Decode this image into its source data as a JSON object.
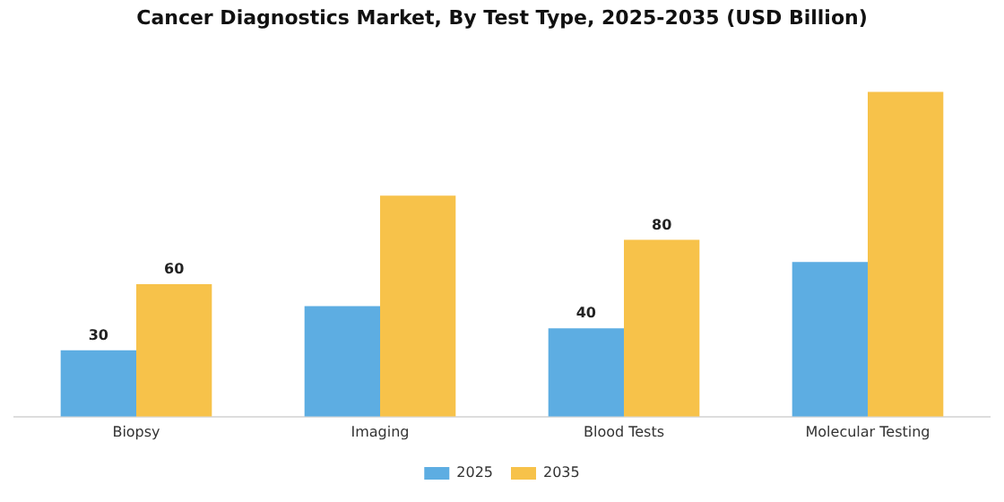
{
  "chart_data": {
    "type": "bar",
    "title": "Cancer Diagnostics Market, By Test Type, 2025-2035 (USD Billion)",
    "categories": [
      "Biopsy",
      "Imaging",
      "Blood Tests",
      "Molecular Testing"
    ],
    "series": [
      {
        "name": "2025",
        "color": "#5dade2",
        "values": [
          30,
          50,
          40,
          70
        ],
        "value_labels": [
          "30",
          null,
          "40",
          null
        ]
      },
      {
        "name": "2035",
        "color": "#f7c24a",
        "values": [
          60,
          100,
          80,
          147
        ],
        "value_labels": [
          "60",
          null,
          "80",
          null
        ]
      }
    ],
    "legend": "bottom",
    "grid": false
  }
}
